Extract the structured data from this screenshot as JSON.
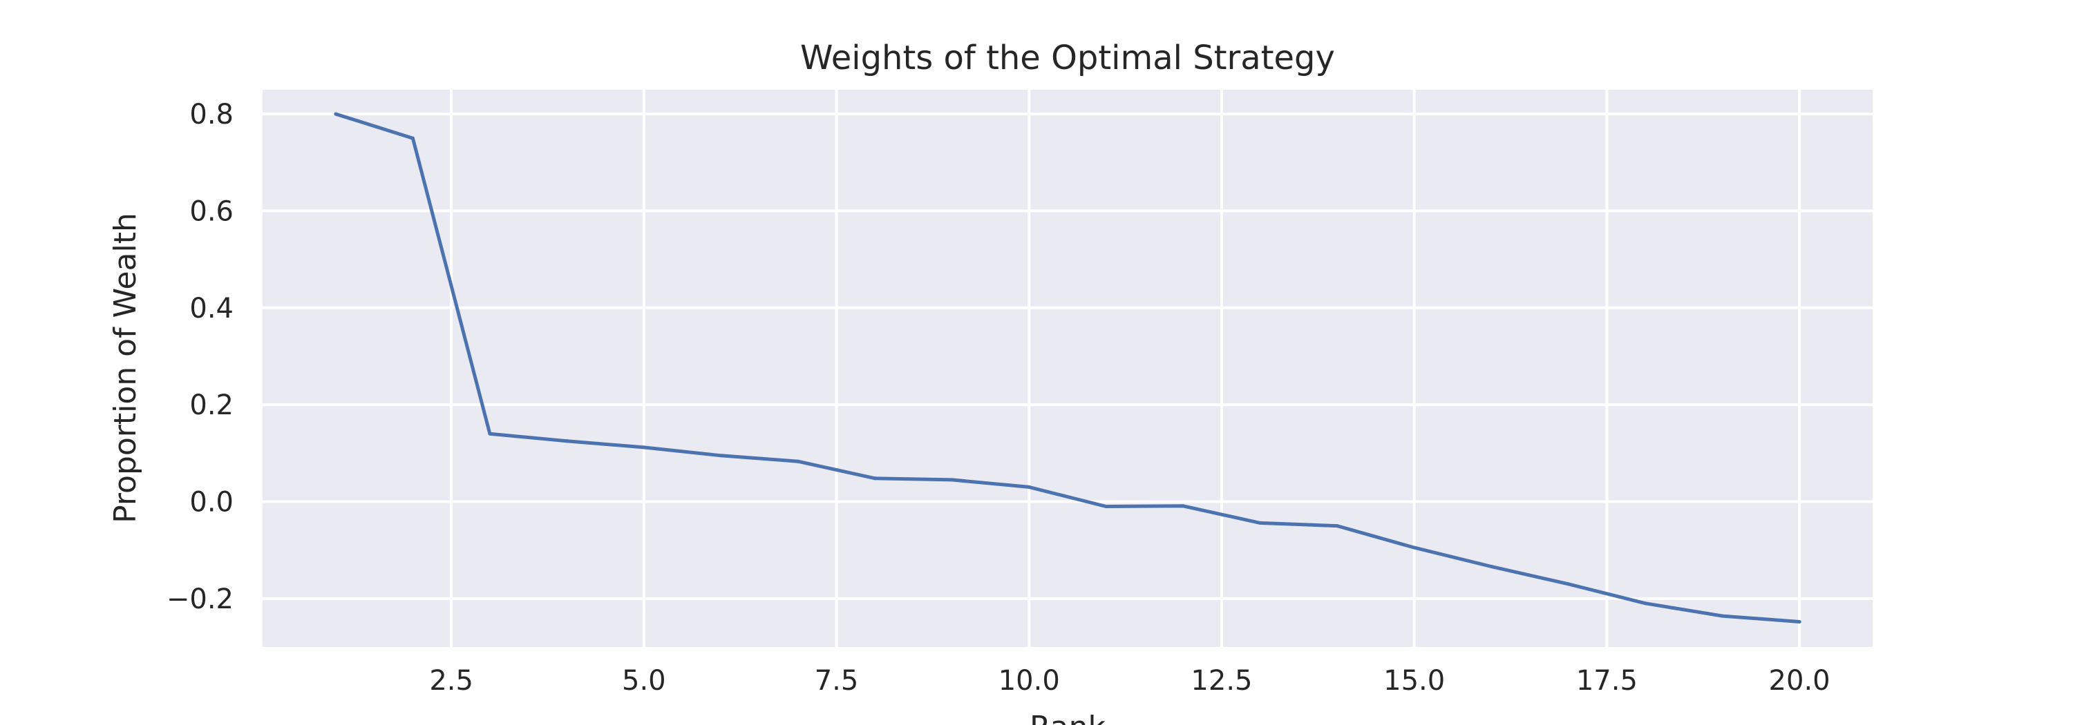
{
  "chart_data": {
    "type": "line",
    "title": "Weights of the Optimal Strategy",
    "xlabel": "Rank",
    "ylabel": "Proportion of Wealth",
    "xlim": [
      0.05,
      20.95
    ],
    "ylim": [
      -0.3,
      0.85
    ],
    "xticks": [
      2.5,
      5.0,
      7.5,
      10.0,
      12.5,
      15.0,
      17.5,
      20.0
    ],
    "xtick_labels": [
      "2.5",
      "5.0",
      "7.5",
      "10.0",
      "12.5",
      "15.0",
      "17.5",
      "20.0"
    ],
    "yticks": [
      -0.2,
      0.0,
      0.2,
      0.4,
      0.6,
      0.8
    ],
    "ytick_labels": [
      "−0.2",
      "0.0",
      "0.2",
      "0.4",
      "0.6",
      "0.8"
    ],
    "grid": true,
    "legend": "none",
    "series": [
      {
        "color": "#4c72b0",
        "x": [
          1,
          2,
          3,
          4,
          5,
          6,
          7,
          8,
          9,
          10,
          11,
          12,
          13,
          14,
          15,
          16,
          17,
          18,
          19,
          20
        ],
        "y": [
          0.8,
          0.75,
          0.14,
          0.125,
          0.112,
          0.095,
          0.083,
          0.048,
          0.045,
          0.03,
          -0.01,
          -0.009,
          -0.044,
          -0.05,
          -0.095,
          -0.134,
          -0.17,
          -0.21,
          -0.236,
          -0.248
        ]
      }
    ]
  }
}
